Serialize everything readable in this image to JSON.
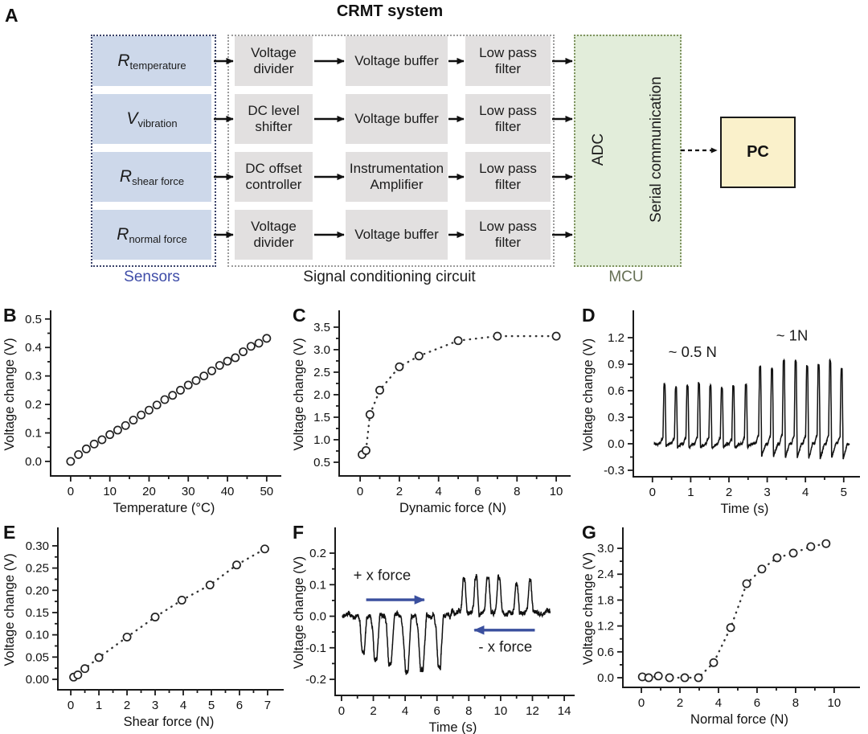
{
  "diagram": {
    "panel_label": "A",
    "title": "CRMT system",
    "sensors": {
      "group_label": "Sensors",
      "items": [
        {
          "symbol": "R",
          "subscript": "temperature"
        },
        {
          "symbol": "V",
          "subscript": "vibration"
        },
        {
          "symbol": "R",
          "subscript": "shear force"
        },
        {
          "symbol": "R",
          "subscript": "normal force"
        }
      ]
    },
    "signal_chain": {
      "group_label": "Signal conditioning circuit",
      "rows": [
        [
          "Voltage divider",
          "Voltage buffer",
          "Low pass filter"
        ],
        [
          "DC level shifter",
          "Voltage buffer",
          "Low pass filter"
        ],
        [
          "DC offset controller",
          "Instrumentation Amplifier",
          "Low pass filter"
        ],
        [
          "Voltage divider",
          "Voltage buffer",
          "Low pass filter"
        ]
      ]
    },
    "mcu": {
      "group_label": "MCU",
      "adc_label": "ADC",
      "serial_label": "Serial communication"
    },
    "pc_label": "PC",
    "colors": {
      "sensor_fill": "#cdd8ea",
      "sensor_border": "#3a4269",
      "signal_fill": "#e2e0e0",
      "signal_border": "#9b9b9b",
      "mcu_fill": "#e2edda",
      "mcu_border": "#7f935f",
      "pc_fill": "#faf1cb",
      "pc_border": "#1a1a1a",
      "sensors_label": "#3f4da8",
      "mcu_label": "#667055",
      "arrow": "#111111",
      "blue_arrow": "#3a4f9e"
    }
  },
  "chart_data": [
    {
      "panel": "B",
      "type": "scatter",
      "title": "",
      "xlabel": "Temperature (°C)",
      "ylabel": "Voltage change (V)",
      "xlim": [
        -5.1,
        52.7
      ],
      "ylim": [
        -0.051,
        0.522
      ],
      "xticks": [
        "0",
        "10",
        "20",
        "30",
        "40",
        "50"
      ],
      "yticks": [
        "0.0",
        "0.1",
        "0.2",
        "0.3",
        "0.4",
        "0.5"
      ],
      "x": [
        0,
        2,
        4,
        6,
        8,
        10,
        12,
        14,
        16,
        18,
        20,
        22,
        24,
        26,
        28,
        30,
        32,
        34,
        36,
        38,
        40,
        42,
        44,
        46,
        48,
        50
      ],
      "y": [
        0.0,
        0.024,
        0.044,
        0.061,
        0.076,
        0.094,
        0.11,
        0.126,
        0.145,
        0.163,
        0.18,
        0.198,
        0.217,
        0.232,
        0.25,
        0.268,
        0.284,
        0.3,
        0.318,
        0.337,
        0.352,
        0.364,
        0.385,
        0.404,
        0.415,
        0.432
      ]
    },
    {
      "panel": "C",
      "type": "scatter_dotted",
      "title": "",
      "xlabel": "Dynamic force (N)",
      "ylabel": "Voltage change (V)",
      "xlim": [
        -1.07,
        10.53
      ],
      "ylim": [
        0.196,
        3.82
      ],
      "xticks": [
        "0",
        "2",
        "4",
        "6",
        "8",
        "10"
      ],
      "yticks": [
        "0.5",
        "1.0",
        "1.5",
        "2.0",
        "2.5",
        "3.0",
        "3.5"
      ],
      "x": [
        0.1,
        0.3,
        0.5,
        1,
        2,
        3,
        5,
        7,
        10
      ],
      "y": [
        0.67,
        0.76,
        1.56,
        2.1,
        2.62,
        2.86,
        3.2,
        3.3,
        3.3
      ]
    },
    {
      "panel": "D",
      "type": "signal",
      "title": "",
      "xlabel": "Time (s)",
      "ylabel": "Voltage change (V)",
      "xlim": [
        -0.5,
        5.32
      ],
      "ylim": [
        -0.373,
        1.482
      ],
      "xticks": [
        "0",
        "1",
        "2",
        "3",
        "4",
        "5"
      ],
      "yticks": [
        "-0.3",
        "0.0",
        "0.3",
        "0.6",
        "0.9",
        "1.2"
      ],
      "trace": {
        "t0": 0.05,
        "t1": 5.15,
        "noise": 0.008,
        "seed": 7,
        "pulses": [
          {
            "t": 0.3,
            "a": 0.66,
            "u": -0.035
          },
          {
            "t": 0.6,
            "a": 0.635,
            "u": -0.04
          },
          {
            "t": 0.9,
            "a": 0.655,
            "u": -0.05
          },
          {
            "t": 1.2,
            "a": 0.675,
            "u": -0.04
          },
          {
            "t": 1.5,
            "a": 0.66,
            "u": -0.045
          },
          {
            "t": 1.8,
            "a": 0.64,
            "u": -0.04
          },
          {
            "t": 2.1,
            "a": 0.635,
            "u": -0.05
          },
          {
            "t": 2.43,
            "a": 0.655,
            "u": -0.04
          },
          {
            "t": 2.8,
            "a": 0.88,
            "u": -0.12
          },
          {
            "t": 3.11,
            "a": 0.85,
            "u": -0.15
          },
          {
            "t": 3.42,
            "a": 0.93,
            "u": -0.16
          },
          {
            "t": 3.73,
            "a": 0.92,
            "u": -0.15
          },
          {
            "t": 4.03,
            "a": 0.87,
            "u": -0.16
          },
          {
            "t": 4.33,
            "a": 0.88,
            "u": -0.17
          },
          {
            "t": 4.63,
            "a": 0.93,
            "u": -0.16
          },
          {
            "t": 4.93,
            "a": 0.84,
            "u": -0.17
          }
        ]
      },
      "annotations": [
        {
          "text": "~ 0.5 N",
          "x": 1.05,
          "y": 0.98
        },
        {
          "text": "~ 1N",
          "x": 3.65,
          "y": 1.17
        }
      ]
    },
    {
      "panel": "E",
      "type": "scatter_dotted",
      "title": "",
      "xlabel": "Shear force (N)",
      "ylabel": "Voltage change (V)",
      "xlim": [
        -0.46,
        7.43
      ],
      "ylim": [
        -0.0235,
        0.336
      ],
      "xticks": [
        "0",
        "1",
        "2",
        "3",
        "4",
        "5",
        "6",
        "7"
      ],
      "yticks": [
        "0.00",
        "0.05",
        "0.10",
        "0.15",
        "0.20",
        "0.25",
        "0.30"
      ],
      "x": [
        0.1,
        0.25,
        0.5,
        1,
        2,
        3,
        3.95,
        4.95,
        5.9,
        6.9
      ],
      "y": [
        0.005,
        0.01,
        0.024,
        0.049,
        0.095,
        0.14,
        0.178,
        0.212,
        0.257,
        0.293
      ]
    },
    {
      "panel": "F",
      "type": "signal",
      "title": "",
      "xlabel": "Time (s)",
      "ylabel": "Voltage change (V)",
      "xlim": [
        -0.4,
        14.4
      ],
      "ylim": [
        -0.251,
        0.274
      ],
      "xticks": [
        "0",
        "2",
        "4",
        "6",
        "8",
        "10",
        "12",
        "14"
      ],
      "yticks": [
        "-0.2",
        "-0.1",
        "0.0",
        "0.1",
        "0.2"
      ],
      "trace": {
        "t0": 0.05,
        "t1": 13.1,
        "noise": 0.0065,
        "seed": 3,
        "bias": [
          {
            "from": 6.9,
            "to": 13.2,
            "v": 0.012
          }
        ],
        "pulses": [
          {
            "t": 1.35,
            "a": -0.115,
            "w": 0.55
          },
          {
            "t": 2.15,
            "a": -0.145,
            "w": 0.6
          },
          {
            "t": 3.05,
            "a": -0.15,
            "w": 0.65
          },
          {
            "t": 4.1,
            "a": -0.175,
            "w": 0.7
          },
          {
            "t": 5.05,
            "a": -0.165,
            "w": 0.7
          },
          {
            "t": 6.15,
            "a": -0.16,
            "w": 0.6
          },
          {
            "t": 7.7,
            "a": 0.105,
            "w": 0.45
          },
          {
            "t": 8.45,
            "a": 0.108,
            "w": 0.45
          },
          {
            "t": 9.2,
            "a": 0.105,
            "w": 0.5
          },
          {
            "t": 9.9,
            "a": 0.108,
            "w": 0.5
          },
          {
            "t": 11.0,
            "a": 0.088,
            "w": 0.45
          },
          {
            "t": 11.85,
            "a": 0.103,
            "w": 0.45
          }
        ]
      },
      "annotations": [
        {
          "text": "+ x force",
          "x": 2.55,
          "y": 0.115
        },
        {
          "text": "- x force",
          "x": 10.3,
          "y": -0.112
        }
      ],
      "arrows": [
        {
          "x1": 1.55,
          "y1": 0.052,
          "x2": 5.2,
          "y2": 0.052
        },
        {
          "x1": 12.15,
          "y1": -0.044,
          "x2": 8.35,
          "y2": -0.044
        }
      ]
    },
    {
      "panel": "G",
      "type": "scatter_dotted",
      "title": "",
      "xlabel": "Normal force (N)",
      "ylabel": "Voltage change (V)",
      "xlim": [
        -0.96,
        11.13
      ],
      "ylim": [
        -0.224,
        3.43
      ],
      "xticks": [
        "0",
        "2",
        "4",
        "6",
        "8",
        "10"
      ],
      "yticks": [
        "0.0",
        "0.6",
        "1.2",
        "1.8",
        "2.4",
        "3.0"
      ],
      "x": [
        0.05,
        0.38,
        0.88,
        1.46,
        2.25,
        2.96,
        3.75,
        4.63,
        5.46,
        6.25,
        7.04,
        7.88,
        8.79,
        9.58
      ],
      "y": [
        0.02,
        0.0,
        0.04,
        0.0,
        0.0,
        0.0,
        0.35,
        1.16,
        2.18,
        2.52,
        2.78,
        2.89,
        3.04,
        3.11
      ]
    }
  ]
}
